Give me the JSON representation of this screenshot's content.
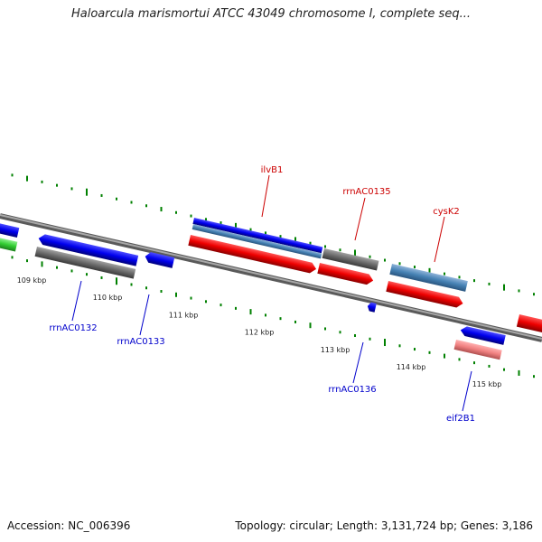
{
  "title": "Haloarcula marismortui ATCC 43049 chromosome I, complete seq...",
  "footer": {
    "accession": "Accession: NC_006396",
    "summary": "Topology: circular; Length: 3,131,724 bp; Genes: 3,186"
  },
  "ruler": {
    "unit": "kbp",
    "ticks": [
      "109 kbp",
      "110 kbp",
      "111 kbp",
      "112 kbp",
      "113 kbp",
      "114 kbp",
      "115 kbp"
    ]
  },
  "colors": {
    "backbone": "#808080",
    "forward_cds": "#ff0000",
    "reverse_cds": "#0000ff",
    "rrna": "#696969",
    "trna": "#4682b4",
    "other": "#f08080",
    "green_feature": "#32cd32",
    "gc_tick": "#008000",
    "label_forward": "#cc0000",
    "label_reverse": "#0000cc"
  },
  "labels": {
    "ilvB1": "ilvB1",
    "rrnAC0135": "rrnAC0135",
    "cysK2": "cysK2",
    "rrnAC0132": "rrnAC0132",
    "rrnAC0133": "rrnAC0133",
    "rrnAC0136": "rrnAC0136",
    "eif2B1": "eif2B1"
  }
}
